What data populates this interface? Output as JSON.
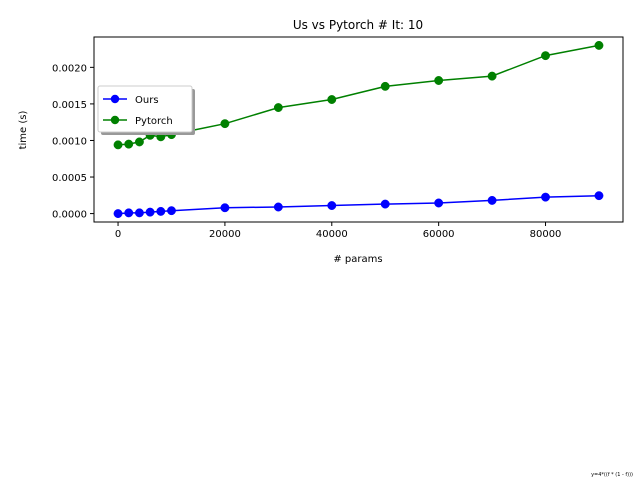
{
  "chart_data": {
    "type": "line",
    "title": "Us vs Pytorch # It: 10",
    "xlabel": "# params",
    "ylabel": "time (s)",
    "xlim": [
      -4500,
      94500
    ],
    "ylim": [
      -0.000115,
      0.002415
    ],
    "xticks": [
      0,
      20000,
      40000,
      60000,
      80000
    ],
    "xtick_labels": [
      "0",
      "20000",
      "40000",
      "60000",
      "80000"
    ],
    "yticks": [
      0.0,
      0.0005,
      0.001,
      0.0015,
      0.002
    ],
    "ytick_labels": [
      "0.0000",
      "0.0005",
      "0.0010",
      "0.0015",
      "0.0020"
    ],
    "grid": false,
    "legend_position": "center-left",
    "series": [
      {
        "name": "Ours",
        "color": "#0000ff",
        "x": [
          0,
          2000,
          4000,
          6000,
          8000,
          10000,
          20000,
          30000,
          40000,
          50000,
          60000,
          70000,
          80000,
          90000
        ],
        "y": [
          0.0,
          1e-05,
          1e-05,
          2e-05,
          3e-05,
          4e-05,
          8e-05,
          9e-05,
          0.00011,
          0.00013,
          0.000145,
          0.00018,
          0.000225,
          0.000245
        ]
      },
      {
        "name": "Pytorch",
        "color": "#008000",
        "x": [
          0,
          2000,
          4000,
          6000,
          8000,
          10000,
          20000,
          30000,
          40000,
          50000,
          60000,
          70000,
          80000,
          90000
        ],
        "y": [
          0.00094,
          0.00095,
          0.00098,
          0.00107,
          0.00105,
          0.00108,
          0.00123,
          0.00145,
          0.00156,
          0.00174,
          0.00182,
          0.00188,
          0.00216,
          0.0023
        ]
      }
    ],
    "footnote": "y=4*((f * (1 - f)))"
  }
}
